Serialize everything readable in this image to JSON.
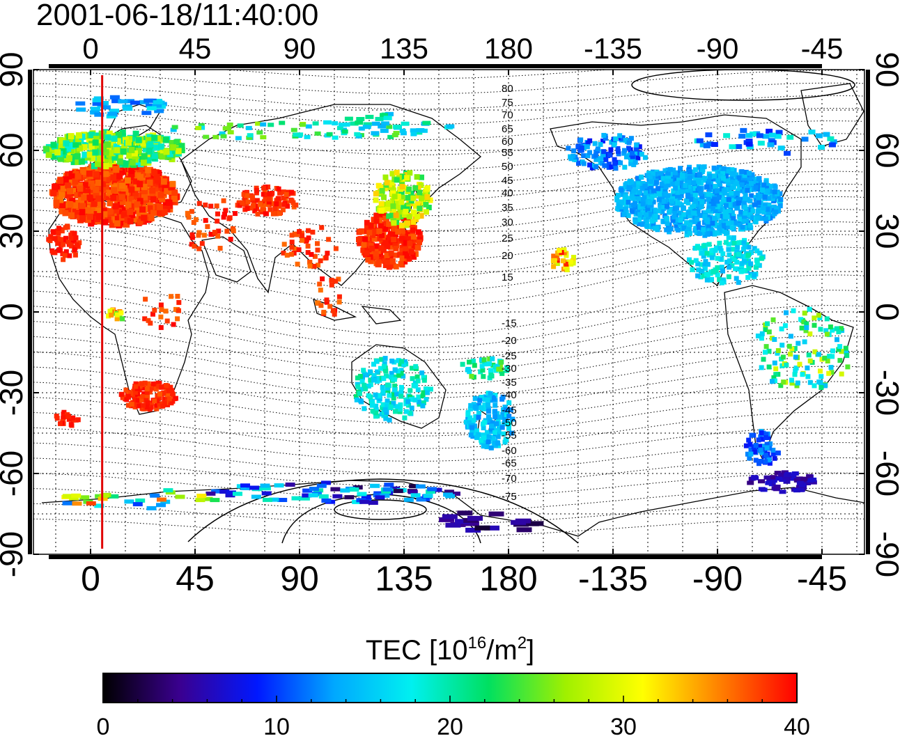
{
  "title": "2001-06-18/11:40:00",
  "map": {
    "x_ticks": [
      "0",
      "45",
      "90",
      "135",
      "180",
      "-135",
      "-90",
      "-45"
    ],
    "y_ticks": [
      "90",
      "60",
      "30",
      "0",
      "-30",
      "-60",
      "-90"
    ],
    "contour_labels": [
      "80",
      "75",
      "70",
      "65",
      "60",
      "55",
      "50",
      "45",
      "40",
      "35",
      "30",
      "25",
      "20",
      "15",
      "-15",
      "-20",
      "-25",
      "-30",
      "-35",
      "-40",
      "-45",
      "-50",
      "-55",
      "-60",
      "-65",
      "-70",
      "-75"
    ],
    "marker_line_longitude": 5,
    "marker_color": "#e00000"
  },
  "colorbar": {
    "label_main": "TEC  [10",
    "label_exp1": "16",
    "label_mid": "/m",
    "label_exp2": "2",
    "label_end": "]",
    "min": 0,
    "max": 40,
    "ticks": [
      "0",
      "10",
      "20",
      "30",
      "40"
    ],
    "colors": [
      "#000000",
      "#3a0090",
      "#0018ff",
      "#00a8ff",
      "#00f0f0",
      "#00e060",
      "#a0f000",
      "#ffff00",
      "#ff8000",
      "#ff0000"
    ]
  },
  "tec_regions": [
    {
      "name": "europe",
      "color": "#ff1a00"
    },
    {
      "name": "north-america",
      "color": "#2a9aff"
    },
    {
      "name": "japan",
      "color": "#ff3000"
    },
    {
      "name": "australia",
      "color": "#00c8d8"
    },
    {
      "name": "antarctica",
      "color": "#3010a0"
    }
  ]
}
